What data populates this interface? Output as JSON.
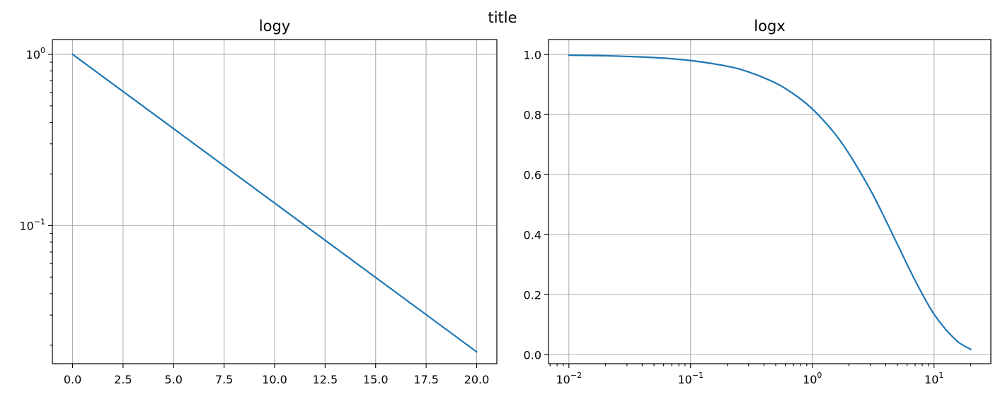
{
  "figure": {
    "suptitle": "title"
  },
  "chart_data": [
    {
      "type": "line",
      "title": "logy",
      "xlabel": "",
      "ylabel": "",
      "xscale": "linear",
      "yscale": "log",
      "xlim": [
        -1.0,
        21.0
      ],
      "ylim": [
        0.0156,
        1.22
      ],
      "grid": true,
      "xticks": [
        0.0,
        2.5,
        5.0,
        7.5,
        10.0,
        12.5,
        15.0,
        17.5,
        20.0
      ],
      "xtick_labels": [
        "0.0",
        "2.5",
        "5.0",
        "7.5",
        "10.0",
        "12.5",
        "15.0",
        "17.5",
        "20.0"
      ],
      "yticks": [
        1.0,
        0.1
      ],
      "ytick_labels": [
        {
          "base": "10",
          "exp": "0"
        },
        {
          "base": "10",
          "exp": "−1"
        }
      ],
      "series": [
        {
          "x": [
            0.0,
            20.0
          ],
          "y": [
            1.0,
            0.0183
          ]
        }
      ]
    },
    {
      "type": "line",
      "title": "logx",
      "xlabel": "",
      "ylabel": "",
      "xscale": "log",
      "yscale": "linear",
      "xlim": [
        0.0068,
        29.3
      ],
      "ylim": [
        -0.03,
        1.05
      ],
      "grid": true,
      "xticks": [
        0.01,
        0.1,
        1.0,
        10.0
      ],
      "xtick_labels": [
        {
          "base": "10",
          "exp": "−2"
        },
        {
          "base": "10",
          "exp": "−1"
        },
        {
          "base": "10",
          "exp": "0"
        },
        {
          "base": "10",
          "exp": "1"
        }
      ],
      "yticks": [
        0.0,
        0.2,
        0.4,
        0.6,
        0.8,
        1.0
      ],
      "ytick_labels": [
        "0.0",
        "0.2",
        "0.4",
        "0.6",
        "0.8",
        "1.0"
      ],
      "series": [
        {
          "x": [
            0.01,
            0.02,
            0.05,
            0.1,
            0.2,
            0.3,
            0.5,
            0.7,
            1.0,
            1.5,
            2.0,
            3.0,
            4.0,
            5.0,
            7.0,
            10.0,
            15.0,
            20.0
          ],
          "y": [
            0.998,
            0.996,
            0.99,
            0.98,
            0.961,
            0.942,
            0.905,
            0.869,
            0.819,
            0.741,
            0.67,
            0.549,
            0.449,
            0.368,
            0.247,
            0.135,
            0.05,
            0.018
          ]
        }
      ]
    }
  ]
}
